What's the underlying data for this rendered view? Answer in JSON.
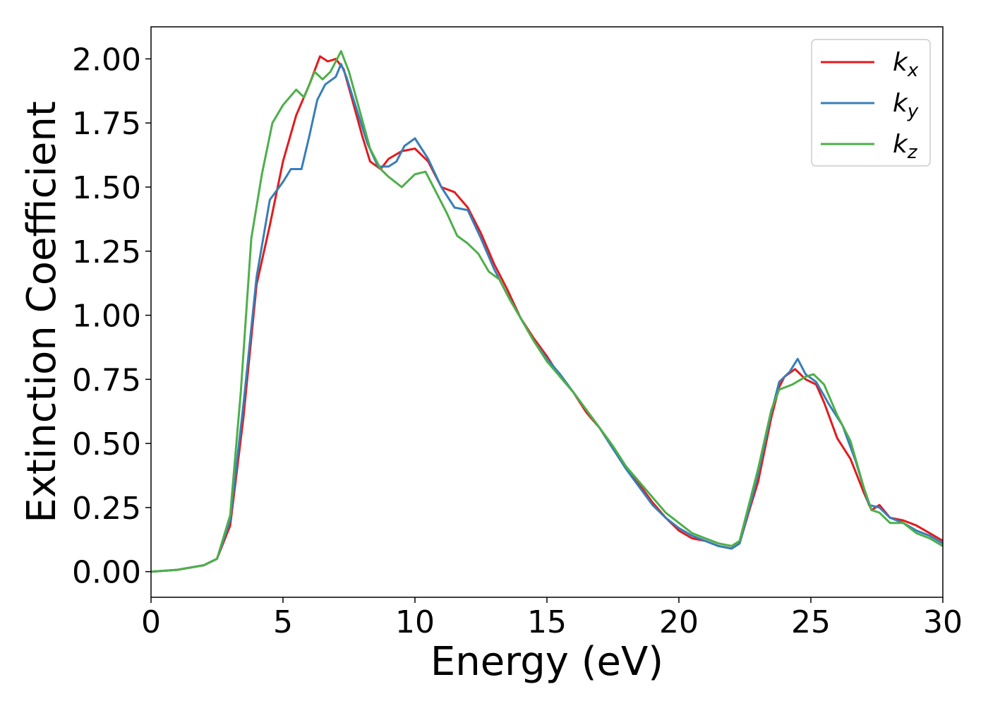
{
  "chart_data": {
    "type": "line",
    "title": "",
    "xlabel": "Energy (eV)",
    "ylabel": "Extinction Coefficient",
    "xlim": [
      0,
      30
    ],
    "ylim": [
      -0.1,
      2.125
    ],
    "xticks": [
      "0",
      "5",
      "10",
      "15",
      "20",
      "25",
      "30"
    ],
    "yticks": [
      "0.00",
      "0.25",
      "0.50",
      "0.75",
      "1.00",
      "1.25",
      "1.50",
      "1.75",
      "2.00"
    ],
    "grid": false,
    "legend_position": "top-right",
    "series": [
      {
        "name": "k",
        "sub": "x",
        "color": "#e41a1c",
        "points": [
          [
            0,
            0
          ],
          [
            1,
            0.007
          ],
          [
            2,
            0.025
          ],
          [
            2.5,
            0.05
          ],
          [
            3,
            0.18
          ],
          [
            3.5,
            0.6
          ],
          [
            4,
            1.12
          ],
          [
            4.5,
            1.35
          ],
          [
            5,
            1.6
          ],
          [
            5.5,
            1.78
          ],
          [
            6,
            1.9
          ],
          [
            6.4,
            2.01
          ],
          [
            6.7,
            1.99
          ],
          [
            7,
            2.0
          ],
          [
            7.3,
            1.96
          ],
          [
            7.6,
            1.85
          ],
          [
            8,
            1.7
          ],
          [
            8.3,
            1.6
          ],
          [
            8.7,
            1.57
          ],
          [
            9,
            1.61
          ],
          [
            9.5,
            1.64
          ],
          [
            10,
            1.65
          ],
          [
            10.5,
            1.6
          ],
          [
            11,
            1.5
          ],
          [
            11.5,
            1.48
          ],
          [
            12,
            1.42
          ],
          [
            12.5,
            1.32
          ],
          [
            13,
            1.2
          ],
          [
            13.5,
            1.1
          ],
          [
            14,
            0.99
          ],
          [
            14.5,
            0.91
          ],
          [
            15,
            0.84
          ],
          [
            15.5,
            0.76
          ],
          [
            16,
            0.7
          ],
          [
            16.5,
            0.62
          ],
          [
            17,
            0.56
          ],
          [
            17.5,
            0.48
          ],
          [
            18,
            0.41
          ],
          [
            18.5,
            0.34
          ],
          [
            19,
            0.27
          ],
          [
            19.5,
            0.21
          ],
          [
            20,
            0.16
          ],
          [
            20.5,
            0.13
          ],
          [
            21,
            0.12
          ],
          [
            21.5,
            0.1
          ],
          [
            22,
            0.09
          ],
          [
            22.3,
            0.11
          ],
          [
            22.7,
            0.25
          ],
          [
            23,
            0.35
          ],
          [
            23.5,
            0.6
          ],
          [
            23.8,
            0.72
          ],
          [
            24,
            0.76
          ],
          [
            24.4,
            0.79
          ],
          [
            24.8,
            0.75
          ],
          [
            25.2,
            0.73
          ],
          [
            25.5,
            0.66
          ],
          [
            26,
            0.52
          ],
          [
            26.5,
            0.44
          ],
          [
            27,
            0.31
          ],
          [
            27.3,
            0.24
          ],
          [
            27.6,
            0.26
          ],
          [
            28,
            0.21
          ],
          [
            28.5,
            0.2
          ],
          [
            29,
            0.18
          ],
          [
            29.5,
            0.15
          ],
          [
            30,
            0.12
          ]
        ]
      },
      {
        "name": "k",
        "sub": "y",
        "color": "#377eb8",
        "points": [
          [
            0,
            0
          ],
          [
            1,
            0.007
          ],
          [
            2,
            0.025
          ],
          [
            2.5,
            0.05
          ],
          [
            3,
            0.2
          ],
          [
            3.5,
            0.65
          ],
          [
            4,
            1.15
          ],
          [
            4.5,
            1.45
          ],
          [
            5,
            1.52
          ],
          [
            5.3,
            1.57
          ],
          [
            5.7,
            1.57
          ],
          [
            6,
            1.7
          ],
          [
            6.3,
            1.84
          ],
          [
            6.6,
            1.9
          ],
          [
            7,
            1.93
          ],
          [
            7.2,
            1.98
          ],
          [
            7.4,
            1.93
          ],
          [
            7.8,
            1.8
          ],
          [
            8.2,
            1.67
          ],
          [
            8.6,
            1.58
          ],
          [
            9,
            1.58
          ],
          [
            9.3,
            1.6
          ],
          [
            9.6,
            1.66
          ],
          [
            10,
            1.69
          ],
          [
            10.5,
            1.61
          ],
          [
            11,
            1.5
          ],
          [
            11.5,
            1.42
          ],
          [
            12,
            1.41
          ],
          [
            12.5,
            1.3
          ],
          [
            13,
            1.18
          ],
          [
            13.5,
            1.08
          ],
          [
            14,
            0.99
          ],
          [
            14.5,
            0.9
          ],
          [
            15,
            0.83
          ],
          [
            15.5,
            0.77
          ],
          [
            16,
            0.7
          ],
          [
            16.5,
            0.63
          ],
          [
            17,
            0.56
          ],
          [
            17.5,
            0.48
          ],
          [
            18,
            0.4
          ],
          [
            18.5,
            0.33
          ],
          [
            19,
            0.26
          ],
          [
            19.5,
            0.21
          ],
          [
            20,
            0.17
          ],
          [
            20.5,
            0.14
          ],
          [
            21,
            0.12
          ],
          [
            21.5,
            0.1
          ],
          [
            22,
            0.09
          ],
          [
            22.3,
            0.11
          ],
          [
            22.7,
            0.26
          ],
          [
            23,
            0.38
          ],
          [
            23.5,
            0.62
          ],
          [
            23.8,
            0.74
          ],
          [
            24.2,
            0.78
          ],
          [
            24.5,
            0.83
          ],
          [
            24.8,
            0.77
          ],
          [
            25.2,
            0.74
          ],
          [
            25.7,
            0.65
          ],
          [
            26.2,
            0.57
          ],
          [
            26.7,
            0.43
          ],
          [
            27.2,
            0.26
          ],
          [
            27.6,
            0.25
          ],
          [
            28,
            0.21
          ],
          [
            28.5,
            0.19
          ],
          [
            29,
            0.16
          ],
          [
            29.5,
            0.14
          ],
          [
            30,
            0.11
          ]
        ]
      },
      {
        "name": "k",
        "sub": "z",
        "color": "#4daf4a",
        "points": [
          [
            0,
            0
          ],
          [
            1,
            0.007
          ],
          [
            2,
            0.025
          ],
          [
            2.5,
            0.05
          ],
          [
            3,
            0.22
          ],
          [
            3.4,
            0.7
          ],
          [
            3.8,
            1.3
          ],
          [
            4.2,
            1.55
          ],
          [
            4.6,
            1.75
          ],
          [
            5,
            1.82
          ],
          [
            5.5,
            1.88
          ],
          [
            5.8,
            1.85
          ],
          [
            6.2,
            1.95
          ],
          [
            6.5,
            1.92
          ],
          [
            6.8,
            1.95
          ],
          [
            7.2,
            2.03
          ],
          [
            7.5,
            1.95
          ],
          [
            7.9,
            1.8
          ],
          [
            8.3,
            1.65
          ],
          [
            8.7,
            1.57
          ],
          [
            9,
            1.54
          ],
          [
            9.5,
            1.5
          ],
          [
            10,
            1.55
          ],
          [
            10.4,
            1.56
          ],
          [
            10.8,
            1.48
          ],
          [
            11.2,
            1.4
          ],
          [
            11.6,
            1.31
          ],
          [
            12,
            1.28
          ],
          [
            12.4,
            1.24
          ],
          [
            12.8,
            1.17
          ],
          [
            13.2,
            1.14
          ],
          [
            13.6,
            1.06
          ],
          [
            14,
            0.99
          ],
          [
            14.5,
            0.9
          ],
          [
            15,
            0.82
          ],
          [
            15.5,
            0.76
          ],
          [
            16,
            0.7
          ],
          [
            16.5,
            0.63
          ],
          [
            17,
            0.56
          ],
          [
            17.5,
            0.49
          ],
          [
            18,
            0.41
          ],
          [
            18.5,
            0.35
          ],
          [
            19,
            0.29
          ],
          [
            19.5,
            0.23
          ],
          [
            20,
            0.19
          ],
          [
            20.5,
            0.15
          ],
          [
            21,
            0.13
          ],
          [
            21.5,
            0.11
          ],
          [
            22,
            0.1
          ],
          [
            22.3,
            0.12
          ],
          [
            22.7,
            0.28
          ],
          [
            23,
            0.4
          ],
          [
            23.5,
            0.63
          ],
          [
            23.8,
            0.71
          ],
          [
            24.3,
            0.73
          ],
          [
            24.8,
            0.76
          ],
          [
            25.1,
            0.77
          ],
          [
            25.5,
            0.73
          ],
          [
            26,
            0.61
          ],
          [
            26.5,
            0.51
          ],
          [
            27,
            0.33
          ],
          [
            27.3,
            0.24
          ],
          [
            27.6,
            0.23
          ],
          [
            28,
            0.19
          ],
          [
            28.5,
            0.19
          ],
          [
            29,
            0.15
          ],
          [
            29.5,
            0.13
          ],
          [
            30,
            0.1
          ]
        ]
      }
    ]
  }
}
